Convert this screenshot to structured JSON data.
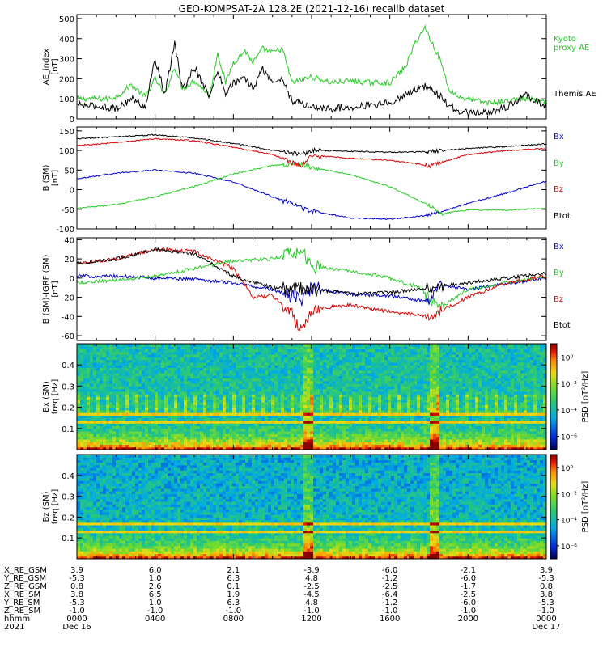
{
  "title": "GEO-KOMPSAT-2A 128.2E (2021-12-16) recalib dataset",
  "colors": {
    "black": "#000000",
    "blue": "#0000cc",
    "red": "#dd0000",
    "green": "#22cc22"
  },
  "chart_data": [
    {
      "type": "line",
      "ylabel": "AE_index [nT]",
      "ylim": [
        0,
        520
      ],
      "yticks": [
        0,
        100,
        200,
        300,
        400,
        500
      ],
      "x_hours": [
        0,
        24
      ],
      "legend": [
        "Kyoto proxy AE",
        "Themis AE"
      ],
      "series": [
        {
          "name": "Kyoto proxy AE",
          "color": "#22cc22",
          "x": [
            0,
            1.5,
            2,
            2.8,
            3.5,
            4,
            4.5,
            5,
            5.4,
            6,
            6.8,
            7.2,
            7.6,
            8,
            8.6,
            9,
            9.5,
            10,
            10.5,
            11,
            12,
            13,
            14,
            15,
            16,
            16.8,
            17.3,
            17.8,
            18.2,
            18.6,
            19,
            19.5,
            20,
            21,
            22,
            23,
            24
          ],
          "y": [
            100,
            100,
            110,
            170,
            110,
            200,
            120,
            260,
            150,
            190,
            120,
            330,
            180,
            280,
            340,
            280,
            350,
            330,
            350,
            180,
            210,
            180,
            190,
            180,
            180,
            260,
            380,
            455,
            370,
            290,
            150,
            110,
            100,
            80,
            90,
            100,
            80
          ]
        },
        {
          "name": "Themis AE",
          "color": "#000000",
          "x": [
            0,
            1.5,
            2,
            2.8,
            3.5,
            4,
            4.5,
            5,
            5.4,
            6,
            6.8,
            7.2,
            7.6,
            8,
            8.6,
            9,
            9.5,
            10,
            10.5,
            11,
            12,
            13,
            14,
            15,
            16,
            16.8,
            17.3,
            17.8,
            18.2,
            18.6,
            19,
            19.5,
            20,
            21,
            22,
            23,
            24
          ],
          "y": [
            70,
            60,
            50,
            100,
            60,
            300,
            120,
            380,
            140,
            260,
            110,
            240,
            130,
            180,
            200,
            150,
            250,
            180,
            200,
            90,
            60,
            50,
            60,
            70,
            80,
            120,
            150,
            160,
            140,
            110,
            70,
            40,
            30,
            30,
            60,
            120,
            60
          ]
        }
      ]
    },
    {
      "type": "line",
      "ylabel": "B (SM) [nT]",
      "ylim": [
        -100,
        160
      ],
      "yticks": [
        -100,
        -50,
        0,
        50,
        100,
        150
      ],
      "x_hours": [
        0,
        24
      ],
      "legend": [
        "Bx",
        "By",
        "Bz",
        "Btot"
      ],
      "series": [
        {
          "name": "Bx",
          "color": "#0000cc",
          "x": [
            0,
            2,
            4,
            6,
            8,
            10,
            12,
            14,
            16,
            18,
            20,
            22,
            24
          ],
          "y": [
            28,
            42,
            50,
            42,
            20,
            -18,
            -55,
            -72,
            -75,
            -65,
            -35,
            -8,
            22
          ]
        },
        {
          "name": "By",
          "color": "#22cc22",
          "x": [
            0,
            2,
            4,
            6,
            8,
            10,
            11.5,
            12,
            14,
            16,
            18,
            18.6,
            19,
            20,
            22,
            24
          ],
          "y": [
            -48,
            -38,
            -18,
            8,
            40,
            62,
            65,
            58,
            38,
            8,
            -40,
            -62,
            -58,
            -52,
            -52,
            -48
          ]
        },
        {
          "name": "Bz",
          "color": "#dd0000",
          "x": [
            0,
            2,
            4,
            6,
            8,
            10,
            11,
            11.5,
            12,
            14,
            16,
            17.5,
            18,
            19,
            20,
            22,
            24
          ],
          "y": [
            112,
            120,
            130,
            125,
            108,
            90,
            70,
            60,
            88,
            80,
            75,
            65,
            60,
            75,
            90,
            100,
            105
          ]
        },
        {
          "name": "Btot",
          "color": "#000000",
          "x": [
            0,
            2,
            4,
            6,
            8,
            10,
            11.5,
            12,
            14,
            16,
            18,
            20,
            22,
            24
          ],
          "y": [
            130,
            135,
            140,
            132,
            118,
            100,
            90,
            100,
            98,
            95,
            97,
            105,
            110,
            117
          ]
        }
      ]
    },
    {
      "type": "line",
      "ylabel": "B (SM)-IGRF (SM) [nT]",
      "ylim": [
        -65,
        42
      ],
      "yticks": [
        -60,
        -40,
        -20,
        0,
        20,
        40
      ],
      "x_hours": [
        0,
        24
      ],
      "legend": [
        "Bx",
        "By",
        "Bz",
        "Btot"
      ],
      "series": [
        {
          "name": "Bx",
          "color": "#0000cc",
          "x": [
            0,
            2,
            4,
            6,
            8,
            10,
            11.5,
            12,
            14,
            16,
            18,
            18.5,
            20,
            22,
            24
          ],
          "y": [
            2,
            2,
            0,
            -1,
            -5,
            -12,
            -22,
            -10,
            -17,
            -18,
            -25,
            -6,
            -12,
            -6,
            0
          ]
        },
        {
          "name": "By",
          "color": "#22cc22",
          "x": [
            0,
            2,
            4,
            6,
            8,
            10,
            11.5,
            12,
            14,
            16,
            17.5,
            18,
            18.5,
            20,
            22,
            24
          ],
          "y": [
            -5,
            -2,
            2,
            10,
            18,
            20,
            28,
            12,
            8,
            0,
            -10,
            -20,
            -32,
            -12,
            -5,
            2
          ]
        },
        {
          "name": "Bz",
          "color": "#dd0000",
          "x": [
            0,
            2,
            4,
            6,
            8,
            9,
            10,
            11,
            11.5,
            12,
            14,
            16,
            18,
            18.5,
            20,
            22,
            24
          ],
          "y": [
            15,
            20,
            30,
            28,
            10,
            -20,
            -18,
            -38,
            -55,
            -32,
            -28,
            -35,
            -40,
            -35,
            -20,
            -5,
            2
          ]
        },
        {
          "name": "Btot",
          "color": "#000000",
          "x": [
            0,
            2,
            4,
            6,
            8,
            10,
            12,
            14,
            16,
            18,
            20,
            22,
            24
          ],
          "y": [
            15,
            20,
            30,
            25,
            2,
            -10,
            -12,
            -16,
            -15,
            -10,
            -5,
            0,
            5
          ]
        }
      ]
    },
    {
      "type": "heatmap",
      "ylabel": "Bx (SM) freq [Hz]",
      "ylim": [
        0,
        0.5
      ],
      "yticks": [
        0.1,
        0.2,
        0.3,
        0.4
      ],
      "colorbar": {
        "label": "PSD [nT²/Hz]",
        "ticks": [
          "10⁰",
          "10⁻²",
          "10⁻⁴",
          "10⁻⁶"
        ],
        "tick_exp": [
          0,
          -2,
          -4,
          -6
        ],
        "range": [
          -7,
          1
        ]
      },
      "bands_hz": [
        0.133,
        0.167
      ],
      "events_hours": [
        11.8,
        18.3
      ]
    },
    {
      "type": "heatmap",
      "ylabel": "Bz (SM) freq [Hz]",
      "ylim": [
        0,
        0.5
      ],
      "yticks": [
        0.1,
        0.2,
        0.3,
        0.4
      ],
      "colorbar": {
        "label": "PSD [nT²/Hz]",
        "ticks": [
          "10⁰",
          "10⁻²",
          "10⁻⁴",
          "10⁻⁶"
        ],
        "tick_exp": [
          0,
          -2,
          -4,
          -6
        ],
        "range": [
          -7,
          1
        ]
      },
      "bands_hz": [
        0.133,
        0.167
      ],
      "events_hours": [
        11.8,
        18.3
      ]
    }
  ],
  "ephemeris": {
    "labels": [
      "X_RE_GSM",
      "Y_RE_GSM",
      "Z_RE_GSM",
      "X_RE_SM",
      "Y_RE_SM",
      "Z_RE_SM",
      "hhmm",
      "2021"
    ],
    "columns": [
      [
        "3.9",
        "-5.3",
        "0.8",
        "3.8",
        "-5.3",
        "-1.0",
        "0000",
        "Dec 16"
      ],
      [
        "6.0",
        "1.0",
        "2.6",
        "6.5",
        "1.0",
        "-1.0",
        "0400",
        ""
      ],
      [
        "2.1",
        "6.3",
        "0.1",
        "1.9",
        "6.3",
        "-1.0",
        "0800",
        ""
      ],
      [
        "-3.9",
        "4.8",
        "-2.5",
        "-4.5",
        "4.8",
        "-1.0",
        "1200",
        ""
      ],
      [
        "-6.0",
        "-1.2",
        "-2.5",
        "-6.4",
        "-1.2",
        "-1.0",
        "1600",
        ""
      ],
      [
        "-2.1",
        "-6.0",
        "-1.7",
        "-2.5",
        "-6.0",
        "-1.0",
        "2000",
        ""
      ],
      [
        "3.9",
        "-5.3",
        "0.8",
        "3.8",
        "-5.3",
        "-1.0",
        "0000",
        "Dec 17"
      ]
    ]
  }
}
